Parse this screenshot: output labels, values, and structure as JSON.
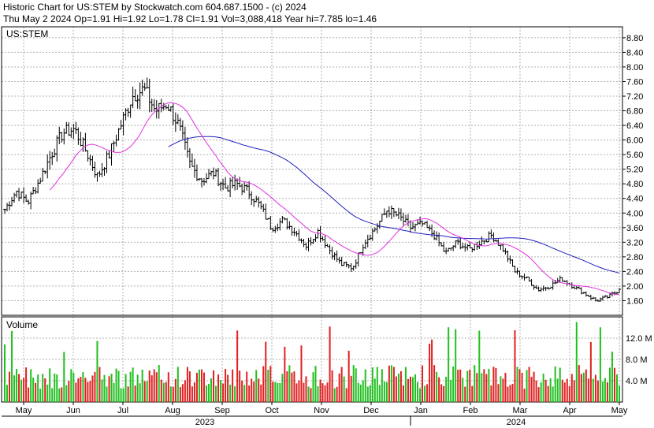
{
  "header": {
    "line1": "Historic Chart for US:STEM by Stockwatch.com 604.687.1500 - (c) 2024",
    "line2": "Thu May  2 2024  Op=1.91  Hi=1.92  Lo=1.78  Cl=1.91  Vol=3,088,418  Year hi=7.785  lo=1.46"
  },
  "chart_data": {
    "type": "ohlc",
    "symbol_label": "US:STEM",
    "volume_label": "Volume",
    "price_ticks": [
      "8.80",
      "8.40",
      "8.00",
      "7.60",
      "7.20",
      "6.80",
      "6.40",
      "6.00",
      "5.60",
      "5.20",
      "4.80",
      "4.40",
      "4.00",
      "3.60",
      "3.20",
      "2.80",
      "2.40",
      "2.00",
      "1.60"
    ],
    "price_range": [
      1.2,
      9.1
    ],
    "volume_ticks": [
      "12.0 M",
      "8.0 M",
      "4.0 M"
    ],
    "volume_range_millions": [
      0,
      16
    ],
    "months": [
      "May",
      "Jun",
      "Jul",
      "Aug",
      "Sep",
      "Oct",
      "Nov",
      "Dec",
      "Jan",
      "Feb",
      "Mar",
      "Apr",
      "May"
    ],
    "years": [
      "2023",
      "2024"
    ],
    "colors": {
      "bars": "#000000",
      "ma_fast": "#e030e0",
      "ma_slow": "#2020c0",
      "vol_up": "#20c020",
      "vol_down": "#e02020",
      "grid": "#b0b0b0"
    },
    "closes_weekly": [
      4.1,
      4.6,
      4.3,
      4.9,
      5.6,
      6.2,
      6.3,
      5.7,
      5.0,
      5.6,
      6.4,
      7.2,
      7.4,
      6.8,
      7.0,
      6.4,
      5.3,
      4.9,
      5.1,
      4.7,
      4.8,
      4.6,
      4.2,
      3.6,
      3.8,
      3.5,
      3.1,
      3.5,
      3.0,
      2.6,
      2.5,
      3.2,
      3.6,
      4.1,
      3.9,
      3.6,
      3.7,
      3.4,
      2.9,
      3.2,
      3.0,
      3.2,
      3.4,
      3.0,
      2.4,
      2.2,
      1.9,
      2.0,
      2.2,
      2.0,
      1.8,
      1.6,
      1.7,
      1.9
    ],
    "last": {
      "open": 1.91,
      "high": 1.92,
      "low": 1.78,
      "close": 1.91,
      "volume": 3088418,
      "year_high": 7.785,
      "year_low": 1.46
    }
  }
}
